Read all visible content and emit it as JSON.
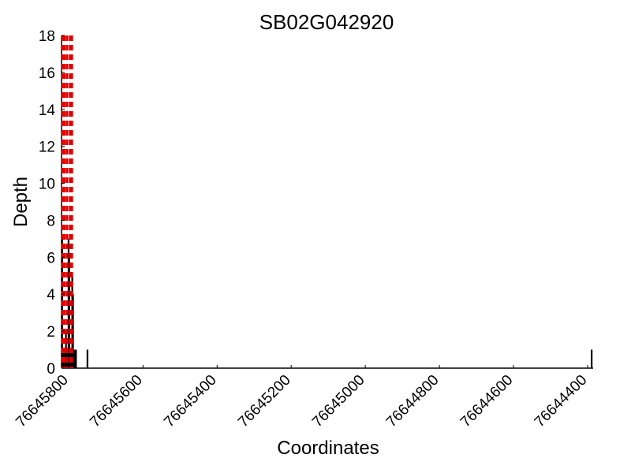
{
  "chart_data": {
    "type": "bar",
    "title": "SB02G042920",
    "xlabel": "Coordinates",
    "ylabel": "Depth",
    "xlim": [
      76645820,
      76644385
    ],
    "x_reversed": true,
    "ylim": [
      0,
      18
    ],
    "yticks": [
      "0",
      "2",
      "4",
      "6",
      "8",
      "10",
      "12",
      "14",
      "16",
      "18"
    ],
    "xticks": [
      "76645800",
      "76645600",
      "76645400",
      "76645200",
      "76645000",
      "76644800",
      "76644600",
      "76644400"
    ],
    "grid": false,
    "bar_color": "#000000",
    "marker_color": "#e00000",
    "marker_style": "dashed",
    "bars": [
      {
        "x": 76645818,
        "y": 7
      },
      {
        "x": 76645816,
        "y": 1
      },
      {
        "x": 76645814,
        "y": 1
      },
      {
        "x": 76645812,
        "y": 1
      },
      {
        "x": 76645810,
        "y": 1
      },
      {
        "x": 76645808,
        "y": 2
      },
      {
        "x": 76645806,
        "y": 1
      },
      {
        "x": 76645803,
        "y": 1
      },
      {
        "x": 76645801,
        "y": 7
      },
      {
        "x": 76645799,
        "y": 6
      },
      {
        "x": 76645797,
        "y": 1
      },
      {
        "x": 76645795,
        "y": 1
      },
      {
        "x": 76645793,
        "y": 1
      },
      {
        "x": 76645791,
        "y": 5
      },
      {
        "x": 76645789,
        "y": 4
      },
      {
        "x": 76645787,
        "y": 1
      },
      {
        "x": 76645784,
        "y": 1
      },
      {
        "x": 76645781,
        "y": 1
      },
      {
        "x": 76645750,
        "y": 1
      },
      {
        "x": 76644389,
        "y": 1
      }
    ],
    "markers": [
      76645818,
      76645812,
      76645805,
      76645797,
      76645792
    ]
  }
}
